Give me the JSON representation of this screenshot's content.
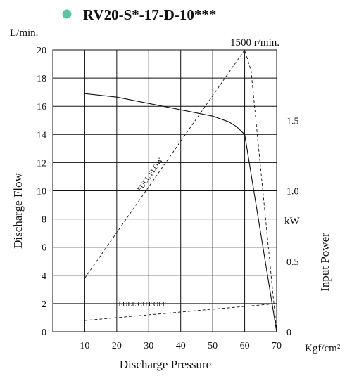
{
  "chart_data": {
    "type": "line",
    "title": "RV20-S*-17-D-10***",
    "title_marker_color": "#5cc6a4",
    "speed_label": "1500 r/min.",
    "x_axis": {
      "label": "Discharge Pressure",
      "unit": "Kgf/cm²",
      "range": [
        0,
        70
      ],
      "ticks": [
        "10",
        "20",
        "30",
        "40",
        "50",
        "60",
        "70"
      ]
    },
    "y_left": {
      "label": "Discharge Flow",
      "unit": "L/min.",
      "range": [
        0,
        20
      ],
      "ticks": [
        "0",
        "2",
        "4",
        "6",
        "8",
        "10",
        "12",
        "14",
        "16",
        "18",
        "20"
      ]
    },
    "y_right": {
      "label": "Input Power",
      "unit": "kW",
      "ticks": [
        "0",
        "0.5",
        "1.0",
        "1.5"
      ],
      "range": [
        0,
        2.0
      ]
    },
    "grid": true,
    "series": [
      {
        "axis": "left",
        "style": "solid",
        "x": [
          10,
          20,
          30,
          40,
          50,
          55,
          57.5,
          60,
          70
        ],
        "y": [
          16.9,
          16.65,
          16.2,
          15.75,
          15.3,
          14.9,
          14.55,
          14.0,
          0
        ]
      },
      {
        "name": "FULL FLOW",
        "axis": "right",
        "style": "dashed",
        "x": [
          10,
          60,
          62,
          70
        ],
        "y": [
          0.38,
          2.0,
          1.85,
          0
        ]
      },
      {
        "name": "FULL CUT OFF",
        "axis": "right",
        "style": "dashed",
        "x": [
          10,
          70
        ],
        "y": [
          0.08,
          0.2
        ]
      }
    ]
  }
}
